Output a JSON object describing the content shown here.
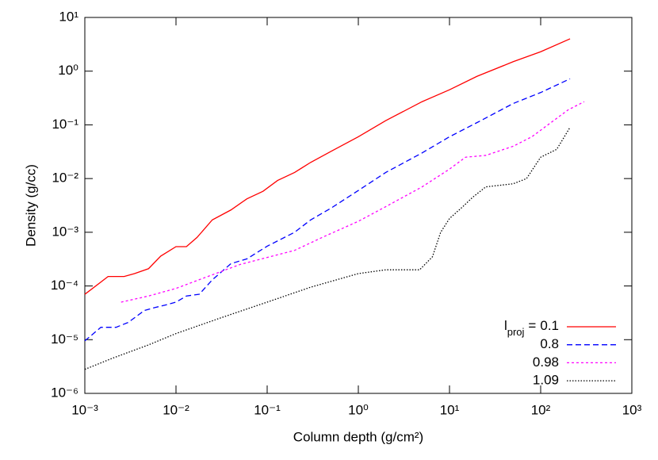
{
  "chart_data": {
    "type": "line",
    "x_label": "Column depth (g/cm²)",
    "y_label": "Density (g/cc)",
    "xscale": "log",
    "yscale": "log",
    "xlim": [
      0.001,
      1000
    ],
    "ylim": [
      1e-06,
      10
    ],
    "xticks": [
      {
        "value": 0.001,
        "label": "10⁻³"
      },
      {
        "value": 0.01,
        "label": "10⁻²"
      },
      {
        "value": 0.1,
        "label": "10⁻¹"
      },
      {
        "value": 1,
        "label": "10⁰"
      },
      {
        "value": 10,
        "label": "10¹"
      },
      {
        "value": 100,
        "label": "10²"
      },
      {
        "value": 1000,
        "label": "10³"
      }
    ],
    "yticks": [
      {
        "value": 1e-06,
        "label": "10⁻⁶"
      },
      {
        "value": 1e-05,
        "label": "10⁻⁵"
      },
      {
        "value": 0.0001,
        "label": "10⁻⁴"
      },
      {
        "value": 0.001,
        "label": "10⁻³"
      },
      {
        "value": 0.01,
        "label": "10⁻²"
      },
      {
        "value": 0.1,
        "label": "10⁻¹"
      },
      {
        "value": 1,
        "label": "10⁰"
      },
      {
        "value": 10,
        "label": "10¹"
      }
    ],
    "legend": {
      "position": "lower right",
      "label": "l",
      "subscript": "proj",
      "relation": "="
    },
    "series": [
      {
        "name": "0.1",
        "color": "#ff0000",
        "style": "solid",
        "x": [
          0.001,
          0.0018,
          0.0027,
          0.0035,
          0.005,
          0.0068,
          0.01,
          0.013,
          0.017,
          0.025,
          0.04,
          0.06,
          0.09,
          0.13,
          0.2,
          0.3,
          0.5,
          1,
          2,
          5,
          10,
          20,
          50,
          100,
          210
        ],
        "values": [
          7e-05,
          0.00015,
          0.00015,
          0.00017,
          0.00021,
          0.00036,
          0.00054,
          0.00054,
          0.0008,
          0.0017,
          0.0026,
          0.0042,
          0.0058,
          0.0092,
          0.013,
          0.02,
          0.032,
          0.06,
          0.12,
          0.27,
          0.45,
          0.8,
          1.5,
          2.3,
          4.0
        ]
      },
      {
        "name": "0.8",
        "color": "#0000ff",
        "style": "dashed",
        "x": [
          0.001,
          0.0015,
          0.0022,
          0.003,
          0.0045,
          0.006,
          0.008,
          0.01,
          0.013,
          0.018,
          0.025,
          0.04,
          0.06,
          0.1,
          0.2,
          0.3,
          0.5,
          1,
          2,
          5,
          10,
          20,
          50,
          100,
          210
        ],
        "values": [
          9.5e-06,
          1.7e-05,
          1.7e-05,
          2.1e-05,
          3.5e-05,
          4e-05,
          4.5e-05,
          5e-05,
          6.5e-05,
          7e-05,
          0.00013,
          0.00026,
          0.00032,
          0.00055,
          0.001,
          0.0017,
          0.0028,
          0.006,
          0.013,
          0.03,
          0.06,
          0.11,
          0.25,
          0.4,
          0.72
        ]
      },
      {
        "name": "0.98",
        "color": "#ff00ff",
        "style": "short-dashed",
        "x": [
          0.0025,
          0.005,
          0.01,
          0.02,
          0.05,
          0.1,
          0.2,
          0.4,
          1,
          2,
          5,
          10,
          15,
          25,
          50,
          80,
          120,
          200,
          300
        ],
        "values": [
          5e-05,
          6.5e-05,
          9e-05,
          0.00014,
          0.00025,
          0.00034,
          0.00046,
          0.0008,
          0.0016,
          0.003,
          0.007,
          0.015,
          0.025,
          0.027,
          0.04,
          0.06,
          0.1,
          0.19,
          0.27
        ]
      },
      {
        "name": "1.09",
        "color": "#000000",
        "style": "dotted",
        "x": [
          0.001,
          0.002,
          0.005,
          0.01,
          0.03,
          0.1,
          0.3,
          1,
          2,
          4.7,
          6.5,
          8,
          10,
          14,
          18,
          25,
          50,
          70,
          100,
          150,
          210
        ],
        "values": [
          2.8e-06,
          4.5e-06,
          8e-06,
          1.3e-05,
          2.5e-05,
          5e-05,
          9.5e-05,
          0.00017,
          0.0002,
          0.0002,
          0.00035,
          0.001,
          0.0018,
          0.003,
          0.0045,
          0.007,
          0.008,
          0.01,
          0.025,
          0.035,
          0.09
        ]
      }
    ]
  }
}
